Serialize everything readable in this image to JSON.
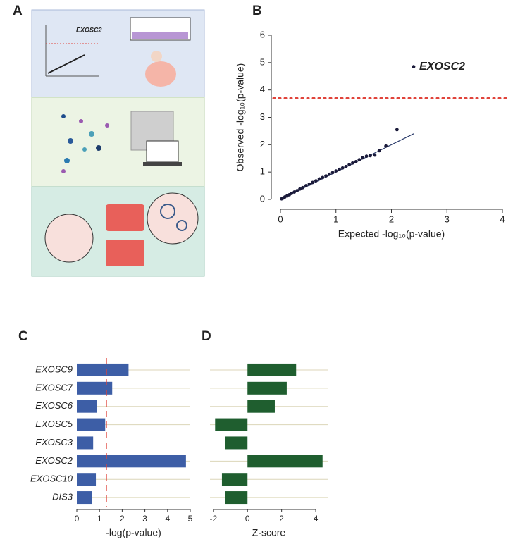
{
  "panels": [
    "A",
    "B",
    "C",
    "D"
  ],
  "illustration": {
    "label": "EXOSC2"
  },
  "chart_data": [
    {
      "type": "scatter",
      "x_label": "Expected -log₁₀(p-value)",
      "y_label": "Observed -log₁₀(p-value)",
      "x": [
        0.02,
        0.05,
        0.08,
        0.12,
        0.16,
        0.2,
        0.25,
        0.3,
        0.35,
        0.4,
        0.46,
        0.52,
        0.58,
        0.64,
        0.7,
        0.76,
        0.82,
        0.88,
        0.94,
        1.0,
        1.06,
        1.12,
        1.18,
        1.24,
        1.3,
        1.36,
        1.42,
        1.48,
        1.55,
        1.62,
        1.7,
        1.78,
        1.9,
        2.1,
        2.4
      ],
      "values": [
        0.02,
        0.05,
        0.09,
        0.13,
        0.17,
        0.22,
        0.27,
        0.32,
        0.38,
        0.43,
        0.5,
        0.56,
        0.62,
        0.68,
        0.75,
        0.8,
        0.86,
        0.92,
        0.98,
        1.04,
        1.1,
        1.15,
        1.2,
        1.27,
        1.33,
        1.38,
        1.45,
        1.52,
        1.58,
        1.6,
        1.62,
        1.78,
        1.95,
        2.55,
        4.85
      ],
      "color": "#1a1a3a",
      "annotation": "EXOSC2",
      "threshold": 3.7,
      "threshold_color": "#e0433a",
      "reference_line": {
        "x": [
          0,
          2.4
        ],
        "y": [
          0,
          2.4
        ]
      },
      "xlim": [
        0,
        4
      ],
      "ylim": [
        0,
        6
      ],
      "xticks": [
        0,
        1,
        2,
        3,
        4
      ],
      "yticks": [
        0,
        1,
        2,
        3,
        4,
        5,
        6
      ]
    },
    {
      "type": "hbar",
      "x_label": "-log(p-value)",
      "categories": [
        "EXOSC9",
        "EXOSC7",
        "EXOSC6",
        "EXOSC5",
        "EXOSC3",
        "EXOSC2",
        "EXOSC10",
        "DIS3"
      ],
      "values": [
        2.28,
        1.56,
        0.9,
        1.25,
        0.72,
        4.81,
        0.84,
        0.66
      ],
      "color": "#3d5ea6",
      "threshold": 1.3,
      "threshold_color": "#e0433a",
      "xlim": [
        0,
        5
      ],
      "xticks": [
        0,
        1,
        2,
        3,
        4,
        5
      ],
      "grid": true
    },
    {
      "type": "hbar",
      "x_label": "Z-score",
      "values": [
        2.85,
        2.3,
        1.6,
        -1.9,
        -1.3,
        4.4,
        -1.5,
        -1.3
      ],
      "color": "#1f5e2f",
      "xlim": [
        -2.2,
        4.7
      ],
      "xticks": [
        -2,
        0,
        2,
        4
      ],
      "grid": true
    }
  ]
}
